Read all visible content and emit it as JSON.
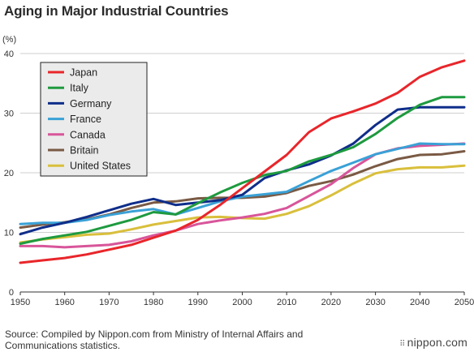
{
  "header": {
    "title": "Aging in Major Industrial Countries"
  },
  "footer": {
    "source": "Source: Compiled by Nippon.com from Ministry of Internal Affairs and Communications statistics.",
    "brand": "nippon.com"
  },
  "chart_data": {
    "type": "line",
    "title": "Aging in Major Industrial Countries",
    "ylabel": "(%)",
    "xlabel": "",
    "x": [
      1950,
      1955,
      1960,
      1965,
      1970,
      1975,
      1980,
      1985,
      1990,
      1995,
      2000,
      2005,
      2010,
      2015,
      2020,
      2025,
      2030,
      2035,
      2040,
      2045,
      2050
    ],
    "xticks": [
      1950,
      1960,
      1970,
      1980,
      1990,
      2000,
      2010,
      2020,
      2030,
      2040,
      2050
    ],
    "yticks": [
      0,
      10,
      20,
      30,
      40
    ],
    "xlim": [
      1950,
      2050
    ],
    "ylim": [
      0,
      40
    ],
    "grid": "horizontal",
    "legend_position": "top-left",
    "series": [
      {
        "name": "Japan",
        "color": "#e8262b",
        "values": [
          4.9,
          5.3,
          5.7,
          6.3,
          7.1,
          7.9,
          9.1,
          10.3,
          12.1,
          14.6,
          17.4,
          20.2,
          23.0,
          26.8,
          29.1,
          30.3,
          31.6,
          33.4,
          36.1,
          37.7,
          38.8
        ]
      },
      {
        "name": "Italy",
        "color": "#1e9a3f",
        "values": [
          8.1,
          8.9,
          9.5,
          10.1,
          11.1,
          12.1,
          13.4,
          13.0,
          14.9,
          16.7,
          18.3,
          19.6,
          20.3,
          21.9,
          23.0,
          24.3,
          26.5,
          29.2,
          31.4,
          32.7,
          32.7
        ]
      },
      {
        "name": "Germany",
        "color": "#0f2e8a",
        "values": [
          9.7,
          10.8,
          11.6,
          12.6,
          13.7,
          14.8,
          15.6,
          14.6,
          15.0,
          15.4,
          16.3,
          19.1,
          20.4,
          21.4,
          22.9,
          24.9,
          28.0,
          30.6,
          31.0,
          31.0,
          31.0
        ]
      },
      {
        "name": "France",
        "color": "#3aa1d6",
        "values": [
          11.4,
          11.6,
          11.6,
          12.1,
          12.9,
          13.5,
          13.9,
          13.0,
          14.1,
          15.2,
          16.0,
          16.4,
          16.8,
          18.6,
          20.3,
          21.7,
          23.1,
          24.0,
          24.9,
          24.8,
          24.8
        ]
      },
      {
        "name": "Canada",
        "color": "#d8559a",
        "values": [
          7.7,
          7.7,
          7.5,
          7.7,
          7.9,
          8.5,
          9.5,
          10.3,
          11.4,
          12.0,
          12.5,
          13.1,
          14.1,
          16.1,
          18.1,
          20.8,
          23.1,
          24.1,
          24.5,
          24.7,
          24.9
        ]
      },
      {
        "name": "Britain",
        "color": "#7a5a44",
        "values": [
          10.8,
          11.3,
          11.7,
          12.2,
          13.0,
          14.1,
          15.0,
          15.2,
          15.7,
          15.8,
          15.8,
          16.0,
          16.6,
          17.8,
          18.6,
          19.7,
          21.1,
          22.3,
          23.0,
          23.1,
          23.6
        ]
      },
      {
        "name": "United States",
        "color": "#d9bf3c",
        "values": [
          8.3,
          8.8,
          9.2,
          9.6,
          9.8,
          10.5,
          11.3,
          11.9,
          12.5,
          12.6,
          12.4,
          12.3,
          13.1,
          14.4,
          16.2,
          18.2,
          19.9,
          20.6,
          20.9,
          20.9,
          21.2
        ]
      }
    ]
  }
}
